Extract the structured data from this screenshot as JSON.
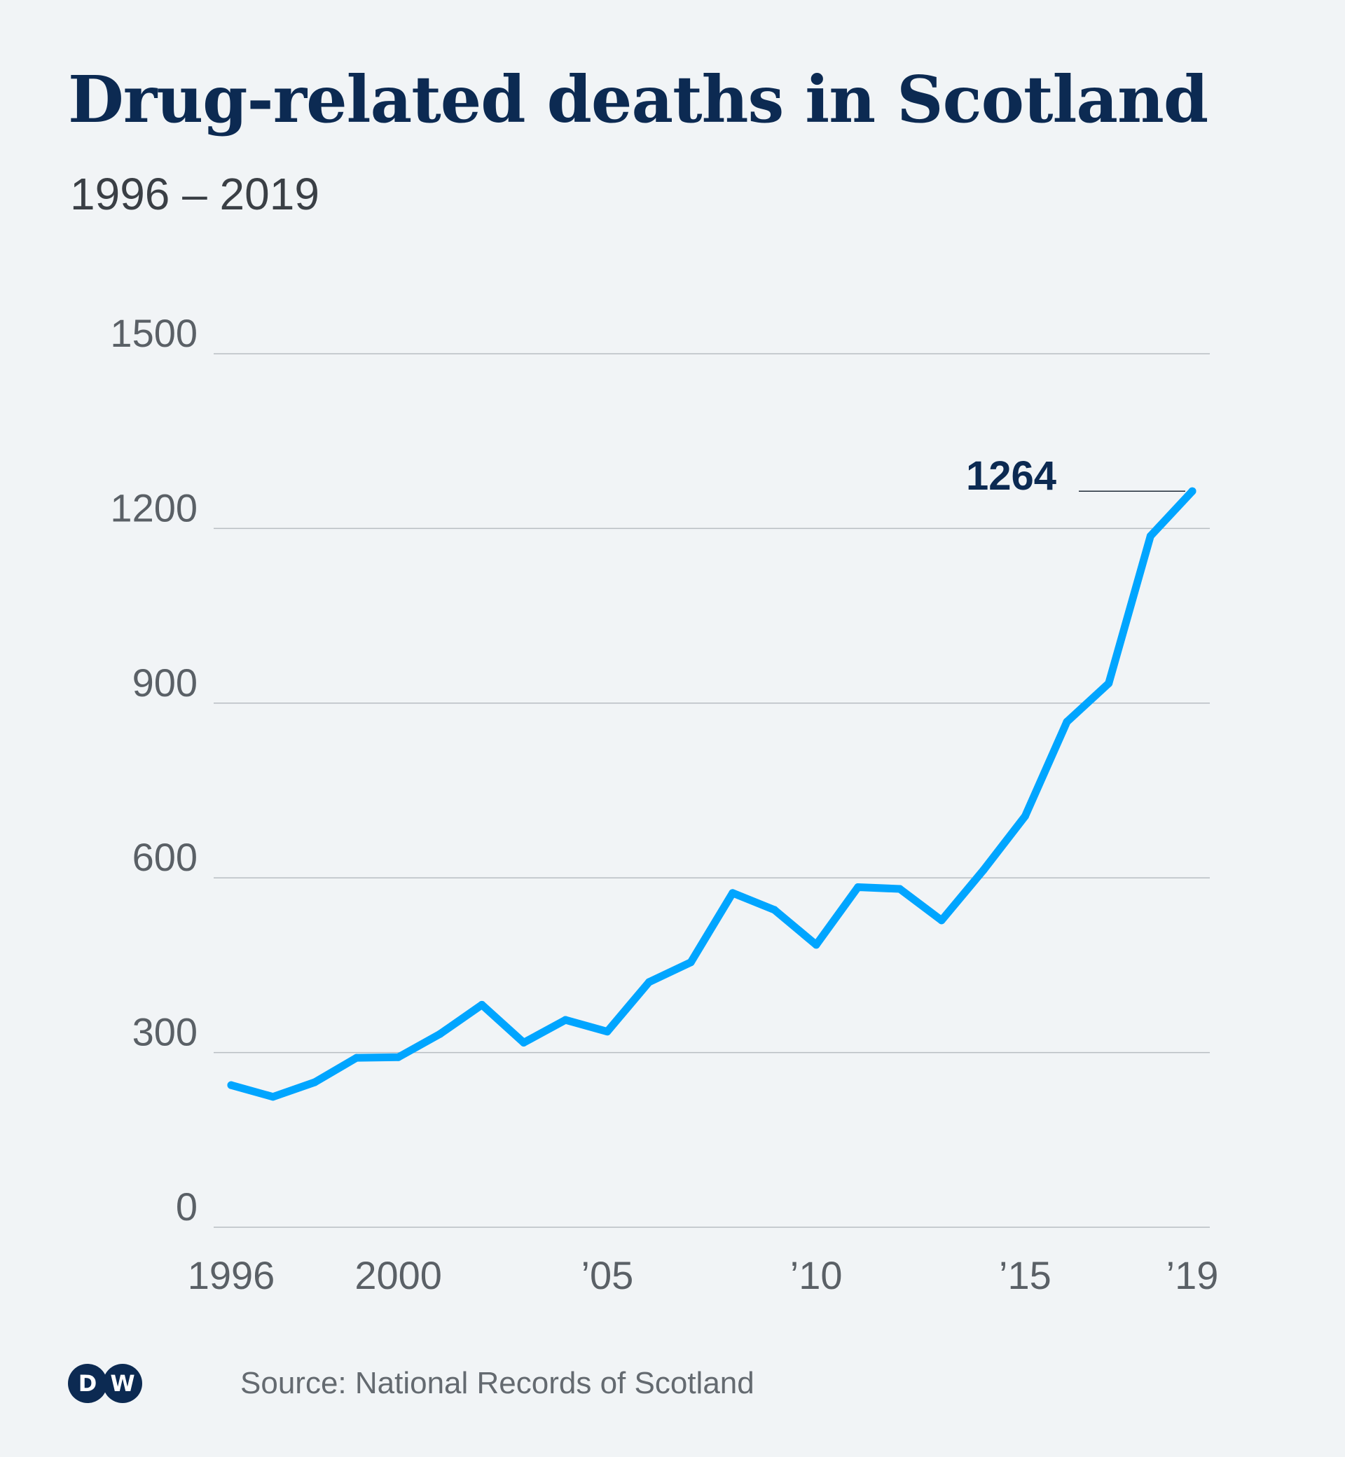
{
  "header": {
    "title": "Drug-related deaths in Scotland",
    "subtitle": "1996 – 2019"
  },
  "footer": {
    "logo_letters": [
      "D",
      "W"
    ],
    "source": "Source: National Records of Scotland"
  },
  "colors": {
    "background": "#f1f4f6",
    "title": "#0c2a52",
    "line": "#00a5ff",
    "grid": "#b8bdc2",
    "tick_text": "#5a6066",
    "annotation": "#0c2a52"
  },
  "chart_data": {
    "type": "line",
    "title": "Drug-related deaths in Scotland",
    "subtitle": "1996 – 2019",
    "xlabel": "",
    "ylabel": "",
    "x": [
      1996,
      1997,
      1998,
      1999,
      2000,
      2001,
      2002,
      2003,
      2004,
      2005,
      2006,
      2007,
      2008,
      2009,
      2010,
      2011,
      2012,
      2013,
      2014,
      2015,
      2016,
      2017,
      2018,
      2019
    ],
    "series": [
      {
        "values": [
          244,
          224,
          249,
          291,
          292,
          332,
          382,
          317,
          356,
          336,
          421,
          455,
          574,
          545,
          485,
          584,
          581,
          527,
          613,
          706,
          868,
          934,
          1187,
          1264
        ]
      }
    ],
    "xlim": [
      1996,
      2019
    ],
    "ylim": [
      0,
      1500
    ],
    "y_ticks": [
      0,
      300,
      600,
      900,
      1200,
      1500
    ],
    "y_tick_labels": [
      "0",
      "300",
      "600",
      "900",
      "1200",
      "1500"
    ],
    "x_ticks": [
      1996,
      2000,
      2005,
      2010,
      2015,
      2019
    ],
    "x_tick_labels": [
      "1996",
      "2000",
      "’05",
      "’10",
      "’15",
      "’19"
    ],
    "grid": true,
    "annotation": {
      "x": 2019,
      "y": 1264,
      "text": "1264"
    }
  }
}
